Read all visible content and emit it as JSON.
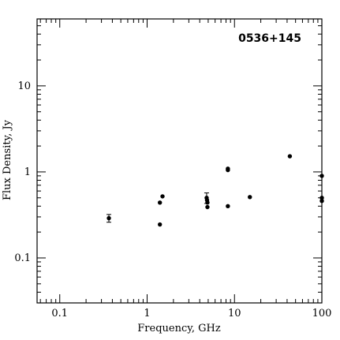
{
  "chart_data": {
    "type": "scatter",
    "title": "0536+145",
    "xlabel": "Frequency, GHz",
    "ylabel": "Flux Density, Jy",
    "xscale": "log",
    "yscale": "log",
    "xlim": [
      0.055,
      100
    ],
    "ylim": [
      0.03,
      60
    ],
    "x_ticks": [
      0.1,
      1,
      10,
      100
    ],
    "x_tick_labels": [
      "0.1",
      "1",
      "10",
      "100"
    ],
    "y_ticks": [
      0.1,
      1,
      10
    ],
    "y_tick_labels": [
      "0.1",
      "1",
      "10"
    ],
    "grid": false,
    "legend": "none",
    "points": [
      {
        "x": 0.365,
        "y": 0.29,
        "yerr": 0.03
      },
      {
        "x": 1.4,
        "y": 0.44,
        "yerr": 0
      },
      {
        "x": 1.4,
        "y": 0.245,
        "yerr": 0
      },
      {
        "x": 1.5,
        "y": 0.52,
        "yerr": 0
      },
      {
        "x": 4.8,
        "y": 0.5,
        "yerr": 0.07
      },
      {
        "x": 4.85,
        "y": 0.47,
        "yerr": 0
      },
      {
        "x": 4.9,
        "y": 0.44,
        "yerr": 0
      },
      {
        "x": 4.9,
        "y": 0.39,
        "yerr": 0
      },
      {
        "x": 8.4,
        "y": 1.05,
        "yerr": 0
      },
      {
        "x": 8.4,
        "y": 1.09,
        "yerr": 0
      },
      {
        "x": 8.4,
        "y": 0.4,
        "yerr": 0
      },
      {
        "x": 15,
        "y": 0.51,
        "yerr": 0
      },
      {
        "x": 43,
        "y": 1.52,
        "yerr": 0
      },
      {
        "x": 100,
        "y": 0.9,
        "yerr": 0
      },
      {
        "x": 100,
        "y": 0.5,
        "yerr": 0
      },
      {
        "x": 100,
        "y": 0.46,
        "yerr": 0
      }
    ]
  }
}
